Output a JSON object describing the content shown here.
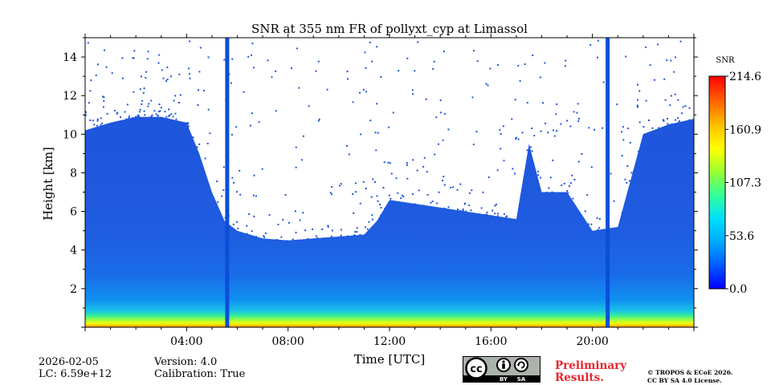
{
  "chart_data": {
    "type": "heatmap",
    "title": "SNR at 355 nm FR of pollyxt_cyp at Limassol",
    "xlabel": "Time [UTC]",
    "ylabel": "Height [km]",
    "xlim_hours": [
      0,
      24
    ],
    "ylim_km": [
      0,
      15
    ],
    "x_ticks": [
      {
        "hour": 4,
        "label": "04:00"
      },
      {
        "hour": 8,
        "label": "08:00"
      },
      {
        "hour": 12,
        "label": "12:00"
      },
      {
        "hour": 16,
        "label": "16:00"
      },
      {
        "hour": 20,
        "label": "20:00"
      }
    ],
    "y_ticks": [
      {
        "km": 2,
        "label": "2"
      },
      {
        "km": 4,
        "label": "4"
      },
      {
        "km": 6,
        "label": "6"
      },
      {
        "km": 8,
        "label": "8"
      },
      {
        "km": 10,
        "label": "10"
      },
      {
        "km": 12,
        "label": "12"
      },
      {
        "km": 14,
        "label": "14"
      }
    ],
    "colorbar": {
      "label": "SNR",
      "min": 0.0,
      "max": 214.6,
      "ticks": [
        {
          "value": 0.0,
          "label": "0.0"
        },
        {
          "value": 53.6,
          "label": "53.6"
        },
        {
          "value": 107.3,
          "label": "107.3"
        },
        {
          "value": 160.9,
          "label": "160.9"
        },
        {
          "value": 214.6,
          "label": "214.6"
        }
      ],
      "colormap": [
        "#0000ff",
        "#005aff",
        "#00aaff",
        "#00e0ff",
        "#33ff99",
        "#99ff33",
        "#ffff00",
        "#ffc000",
        "#ff6600",
        "#ff0000"
      ]
    },
    "signal_top_km": [
      {
        "hour": 0.0,
        "km": 10.2
      },
      {
        "hour": 1.0,
        "km": 10.6
      },
      {
        "hour": 2.0,
        "km": 10.9
      },
      {
        "hour": 3.0,
        "km": 10.9
      },
      {
        "hour": 4.0,
        "km": 10.6
      },
      {
        "hour": 4.5,
        "km": 9.0
      },
      {
        "hour": 5.0,
        "km": 7.0
      },
      {
        "hour": 5.5,
        "km": 5.5
      },
      {
        "hour": 6.0,
        "km": 5.0
      },
      {
        "hour": 7.0,
        "km": 4.6
      },
      {
        "hour": 8.0,
        "km": 4.5
      },
      {
        "hour": 9.0,
        "km": 4.6
      },
      {
        "hour": 10.0,
        "km": 4.7
      },
      {
        "hour": 11.0,
        "km": 4.8
      },
      {
        "hour": 11.5,
        "km": 5.5
      },
      {
        "hour": 12.0,
        "km": 6.6
      },
      {
        "hour": 13.0,
        "km": 6.4
      },
      {
        "hour": 14.0,
        "km": 6.2
      },
      {
        "hour": 15.0,
        "km": 6.0
      },
      {
        "hour": 16.0,
        "km": 5.8
      },
      {
        "hour": 17.0,
        "km": 5.6
      },
      {
        "hour": 17.5,
        "km": 9.5
      },
      {
        "hour": 18.0,
        "km": 7.0
      },
      {
        "hour": 19.0,
        "km": 7.0
      },
      {
        "hour": 20.0,
        "km": 5.0
      },
      {
        "hour": 21.0,
        "km": 5.2
      },
      {
        "hour": 22.0,
        "km": 10.0
      },
      {
        "hour": 23.0,
        "km": 10.5
      },
      {
        "hour": 24.0,
        "km": 10.8
      }
    ],
    "outage_hours": [
      5.6,
      20.6
    ],
    "near_surface_max_snr_km": 0.3
  },
  "info": {
    "date": "2026-02-05",
    "lc": "LC: 6.59e+12",
    "version": "Version: 4.0",
    "calibration": "Calibration: True"
  },
  "license": {
    "badge_cc": "cc",
    "badge_by": "BY",
    "badge_sa": "SA",
    "preliminary_line1": "Preliminary",
    "preliminary_line2": "Results.",
    "copyright_line1": "© TROPOS & ECoE 2026.",
    "copyright_line2": "CC BY SA 4.0 License."
  }
}
